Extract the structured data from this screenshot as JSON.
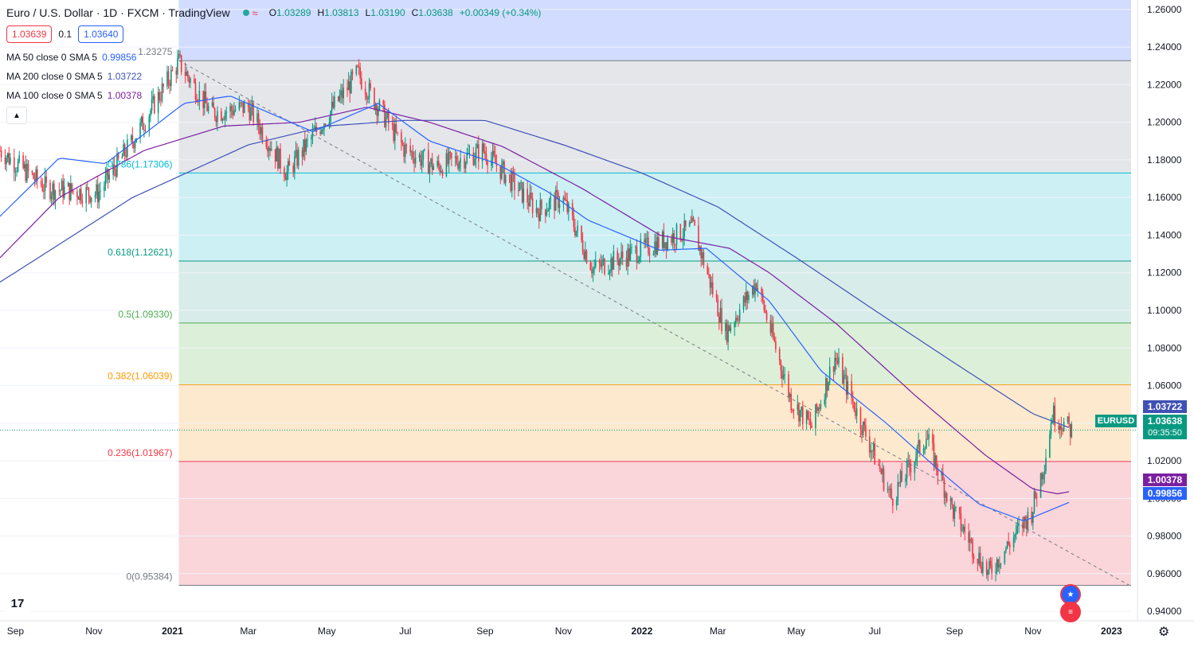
{
  "header": {
    "symbol_title": "Euro / U.S. Dollar · 1D · FXCM · TradingView",
    "open_label": "O",
    "open": "1.03289",
    "high_label": "H",
    "high": "1.03813",
    "low_label": "L",
    "low": "1.03190",
    "close_label": "C",
    "close": "1.03638",
    "change": "+0.00349 (+0.34%)",
    "wave_icon": "≈"
  },
  "trade": {
    "sell_price": "1.03639",
    "spread": "0.1",
    "buy_price": "1.03640"
  },
  "indicators": [
    {
      "name": "MA 50 close 0 SMA 5",
      "value": "0.99856",
      "color": "#2962ff"
    },
    {
      "name": "MA 200 close 0 SMA 5",
      "value": "1.03722",
      "color": "#3f51b5"
    },
    {
      "name": "MA 100 close 0 SMA 5",
      "value": "1.00378",
      "color": "#7b1fa2"
    }
  ],
  "fib_levels": [
    {
      "label": "1.23275",
      "price": 1.23275,
      "color": "#787b86"
    },
    {
      "label": "0.786(1.17306)",
      "price": 1.17306,
      "color": "#00bcd4"
    },
    {
      "label": "0.618(1.12621)",
      "price": 1.12621,
      "color": "#089981"
    },
    {
      "label": "0.5(1.09330)",
      "price": 1.0933,
      "color": "#4caf50"
    },
    {
      "label": "0.382(1.06039)",
      "price": 1.06039,
      "color": "#ff9800"
    },
    {
      "label": "0.236(1.01967)",
      "price": 1.01967,
      "color": "#f23645"
    },
    {
      "label": "0(0.95384)",
      "price": 0.95384,
      "color": "#787b86"
    }
  ],
  "fib_fills": [
    "#d1dcff",
    "#e4e6ea",
    "#cdf0f4",
    "#d8ecea",
    "#dcefd9",
    "#fde9cd",
    "#fad5da"
  ],
  "price_axis": [
    "1.26000",
    "1.24000",
    "1.22000",
    "1.20000",
    "1.18000",
    "1.16000",
    "1.14000",
    "1.12000",
    "1.10000",
    "1.08000",
    "1.06000",
    "1.04000",
    "1.02000",
    "1.00000",
    "0.98000",
    "0.96000",
    "0.94000"
  ],
  "time_axis": [
    "Sep",
    "Nov",
    "2021",
    "Mar",
    "May",
    "Jul",
    "Sep",
    "Nov",
    "2022",
    "Mar",
    "May",
    "Jul",
    "Sep",
    "Nov",
    "2023"
  ],
  "price_tags": {
    "ma200": "1.03722",
    "last": "1.03638",
    "countdown": "09:35:50",
    "ma100": "1.00378",
    "ma50": "0.99856",
    "symbol": "EURUSD"
  },
  "colors": {
    "up": "#089981",
    "down": "#f23645",
    "ma50": "#2962ff",
    "ma100": "#7b1fa2",
    "ma200": "#3f51b5"
  },
  "logo_text": "17",
  "chart_data": {
    "type": "candlestick",
    "title": "Euro / U.S. Dollar · 1D · FXCM",
    "y_range": [
      0.935,
      1.265
    ],
    "x_ticks": [
      "Sep",
      "Nov",
      "2021",
      "Mar",
      "May",
      "Jul",
      "Sep",
      "Nov",
      "2022",
      "Mar",
      "May",
      "Jul",
      "Sep",
      "Nov",
      "2023"
    ],
    "anchors": [
      [
        "2020-08-20",
        1.185
      ],
      [
        "2020-09-25",
        1.165
      ],
      [
        "2020-11-04",
        1.162
      ],
      [
        "2020-12-01",
        1.19
      ],
      [
        "2021-01-06",
        1.232
      ],
      [
        "2021-01-31",
        1.205
      ],
      [
        "2021-03-01",
        1.208
      ],
      [
        "2021-03-31",
        1.173
      ],
      [
        "2021-05-01",
        1.203
      ],
      [
        "2021-05-25",
        1.226
      ],
      [
        "2021-06-30",
        1.186
      ],
      [
        "2021-07-25",
        1.176
      ],
      [
        "2021-08-31",
        1.185
      ],
      [
        "2021-10-12",
        1.153
      ],
      [
        "2021-10-31",
        1.16
      ],
      [
        "2021-11-24",
        1.122
      ],
      [
        "2021-12-31",
        1.132
      ],
      [
        "2022-02-10",
        1.144
      ],
      [
        "2022-03-07",
        1.088
      ],
      [
        "2022-03-31",
        1.115
      ],
      [
        "2022-04-27",
        1.052
      ],
      [
        "2022-05-13",
        1.038
      ],
      [
        "2022-05-31",
        1.075
      ],
      [
        "2022-07-14",
        1.0
      ],
      [
        "2022-08-10",
        1.033
      ],
      [
        "2022-08-31",
        0.993
      ],
      [
        "2022-09-27",
        0.96
      ],
      [
        "2022-10-31",
        0.993
      ],
      [
        "2022-11-10",
        1.02
      ],
      [
        "2022-11-16",
        1.045
      ],
      [
        "2022-12-01",
        1.036
      ]
    ],
    "ma50": [
      [
        "2020-08-20",
        1.15
      ],
      [
        "2020-10-05",
        1.181
      ],
      [
        "2020-11-10",
        1.178
      ],
      [
        "2021-01-10",
        1.21
      ],
      [
        "2021-02-15",
        1.214
      ],
      [
        "2021-04-20",
        1.195
      ],
      [
        "2021-06-10",
        1.21
      ],
      [
        "2021-07-20",
        1.19
      ],
      [
        "2021-09-10",
        1.178
      ],
      [
        "2021-10-20",
        1.163
      ],
      [
        "2021-11-20",
        1.148
      ],
      [
        "2022-01-15",
        1.132
      ],
      [
        "2022-02-20",
        1.133
      ],
      [
        "2022-04-10",
        1.105
      ],
      [
        "2022-05-20",
        1.068
      ],
      [
        "2022-07-10",
        1.04
      ],
      [
        "2022-08-20",
        1.015
      ],
      [
        "2022-09-20",
        0.997
      ],
      [
        "2022-10-25",
        0.988
      ],
      [
        "2022-12-01",
        0.9985
      ]
    ],
    "ma100": [
      [
        "2020-08-20",
        1.128
      ],
      [
        "2020-10-05",
        1.16
      ],
      [
        "2020-12-10",
        1.185
      ],
      [
        "2021-02-10",
        1.198
      ],
      [
        "2021-04-10",
        1.2
      ],
      [
        "2021-06-01",
        1.208
      ],
      [
        "2021-07-20",
        1.2
      ],
      [
        "2021-09-15",
        1.187
      ],
      [
        "2021-11-15",
        1.165
      ],
      [
        "2022-01-15",
        1.14
      ],
      [
        "2022-03-10",
        1.133
      ],
      [
        "2022-04-10",
        1.12
      ],
      [
        "2022-06-01",
        1.093
      ],
      [
        "2022-08-01",
        1.055
      ],
      [
        "2022-09-25",
        1.023
      ],
      [
        "2022-11-01",
        1.005
      ],
      [
        "2022-11-20",
        1.0025
      ],
      [
        "2022-12-01",
        1.0038
      ]
    ],
    "ma200": [
      [
        "2020-08-20",
        1.115
      ],
      [
        "2020-12-01",
        1.16
      ],
      [
        "2021-03-01",
        1.188
      ],
      [
        "2021-05-01",
        1.198
      ],
      [
        "2021-07-01",
        1.201
      ],
      [
        "2021-09-01",
        1.201
      ],
      [
        "2021-11-01",
        1.188
      ],
      [
        "2022-01-01",
        1.173
      ],
      [
        "2022-03-01",
        1.155
      ],
      [
        "2022-05-01",
        1.128
      ],
      [
        "2022-07-01",
        1.1
      ],
      [
        "2022-09-01",
        1.072
      ],
      [
        "2022-11-01",
        1.045
      ],
      [
        "2022-12-01",
        1.0372
      ]
    ],
    "trendline": [
      [
        "2021-01-06",
        1.2328
      ],
      [
        "2023-01-15",
        0.9538
      ]
    ],
    "last_price": 1.03638
  }
}
